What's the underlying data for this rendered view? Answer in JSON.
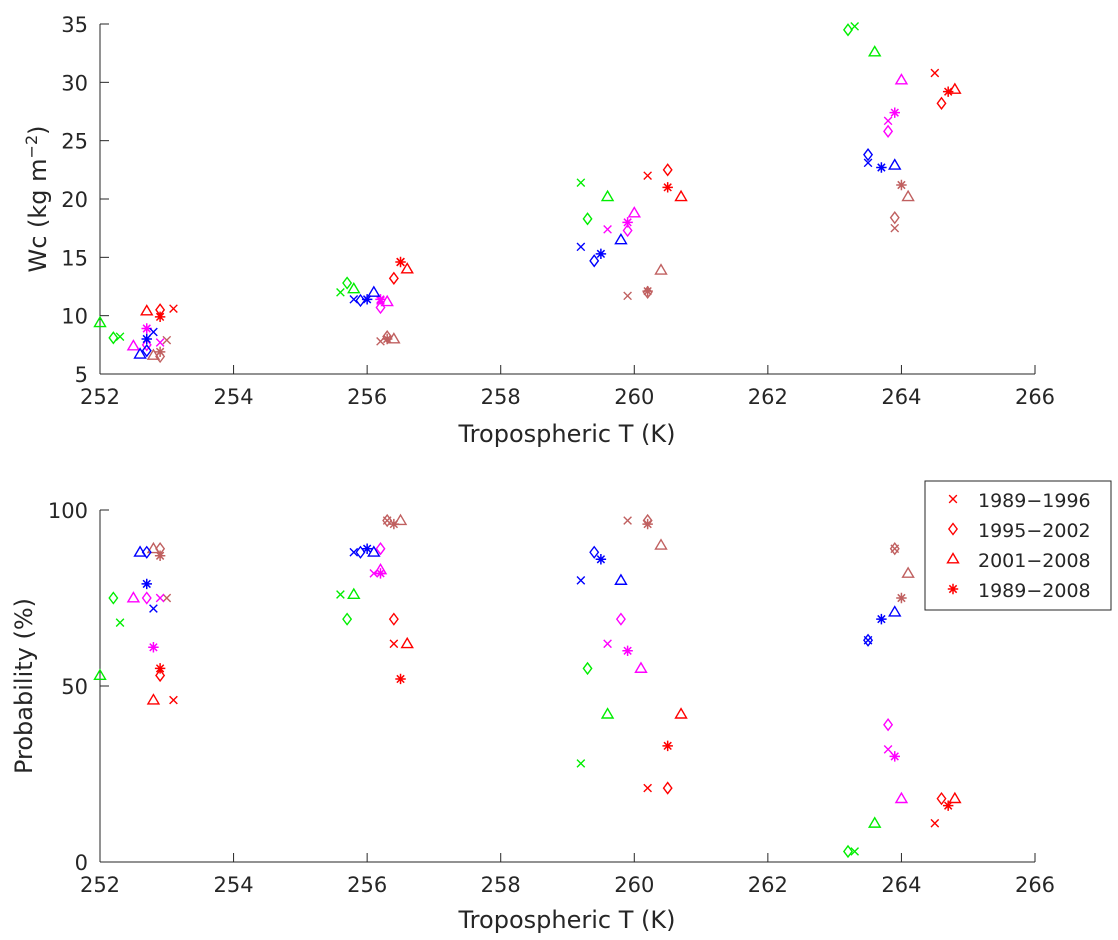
{
  "chart_data": [
    {
      "type": "scatter",
      "xlabel": "Tropospheric T (K)",
      "ylabel_main": "Wc (kg m",
      "ylabel_sup": "−2",
      "ylabel_close": ")",
      "xlim": [
        252,
        266
      ],
      "ylim": [
        5,
        35
      ],
      "xticks": [
        "252",
        "254",
        "256",
        "258",
        "260",
        "262",
        "264",
        "266"
      ],
      "yticks": [
        "5",
        "10",
        "15",
        "20",
        "25",
        "30",
        "35"
      ],
      "grid": false,
      "series": [
        {
          "region": "red",
          "color": "#ff0000",
          "marker": "x",
          "points": [
            [
              253.1,
              10.6
            ],
            [
              256.5,
              14.6
            ],
            [
              260.2,
              22.0
            ],
            [
              264.5,
              30.8
            ]
          ]
        },
        {
          "region": "red",
          "color": "#ff0000",
          "marker": "diamond",
          "points": [
            [
              252.9,
              10.5
            ],
            [
              256.4,
              13.2
            ],
            [
              260.5,
              22.5
            ],
            [
              264.6,
              28.2
            ]
          ]
        },
        {
          "region": "red",
          "color": "#ff0000",
          "marker": "triangle",
          "points": [
            [
              252.7,
              10.4
            ],
            [
              256.6,
              14.0
            ],
            [
              260.7,
              20.2
            ],
            [
              264.8,
              29.4
            ]
          ]
        },
        {
          "region": "red",
          "color": "#ff0000",
          "marker": "asterisk",
          "points": [
            [
              252.9,
              9.9
            ],
            [
              256.5,
              14.6
            ],
            [
              260.5,
              21.0
            ],
            [
              264.7,
              29.2
            ]
          ]
        },
        {
          "region": "brown",
          "color": "#c06060",
          "marker": "x",
          "points": [
            [
              253.0,
              7.9
            ],
            [
              256.2,
              7.8
            ],
            [
              259.9,
              11.7
            ],
            [
              263.9,
              17.5
            ]
          ]
        },
        {
          "region": "brown",
          "color": "#c06060",
          "marker": "diamond",
          "points": [
            [
              252.9,
              6.5
            ],
            [
              256.3,
              8.2
            ],
            [
              260.2,
              12.0
            ],
            [
              263.9,
              18.4
            ]
          ]
        },
        {
          "region": "brown",
          "color": "#c06060",
          "marker": "triangle",
          "points": [
            [
              252.8,
              6.6
            ],
            [
              256.4,
              8.0
            ],
            [
              260.4,
              13.9
            ],
            [
              264.1,
              20.2
            ]
          ]
        },
        {
          "region": "brown",
          "color": "#c06060",
          "marker": "asterisk",
          "points": [
            [
              252.9,
              6.9
            ],
            [
              256.3,
              8.0
            ],
            [
              260.2,
              12.1
            ],
            [
              264.0,
              21.2
            ]
          ]
        },
        {
          "region": "magenta",
          "color": "#ff00ff",
          "marker": "x",
          "points": [
            [
              252.9,
              7.7
            ],
            [
              256.2,
              11.3
            ],
            [
              259.6,
              17.4
            ],
            [
              263.8,
              26.7
            ]
          ]
        },
        {
          "region": "magenta",
          "color": "#ff00ff",
          "marker": "diamond",
          "points": [
            [
              252.7,
              7.5
            ],
            [
              256.2,
              10.7
            ],
            [
              259.9,
              17.3
            ],
            [
              263.8,
              25.8
            ]
          ]
        },
        {
          "region": "magenta",
          "color": "#ff00ff",
          "marker": "triangle",
          "points": [
            [
              252.5,
              7.4
            ],
            [
              256.3,
              11.2
            ],
            [
              260.0,
              18.8
            ],
            [
              264.0,
              30.2
            ]
          ]
        },
        {
          "region": "magenta",
          "color": "#ff00ff",
          "marker": "asterisk",
          "points": [
            [
              252.7,
              8.9
            ],
            [
              256.2,
              11.4
            ],
            [
              259.9,
              18.0
            ],
            [
              263.9,
              27.4
            ]
          ]
        },
        {
          "region": "blue",
          "color": "#0000ff",
          "marker": "x",
          "points": [
            [
              252.8,
              8.6
            ],
            [
              255.8,
              11.4
            ],
            [
              259.2,
              15.9
            ],
            [
              263.5,
              23.1
            ]
          ]
        },
        {
          "region": "blue",
          "color": "#0000ff",
          "marker": "diamond",
          "points": [
            [
              252.7,
              7.0
            ],
            [
              255.9,
              11.3
            ],
            [
              259.4,
              14.7
            ],
            [
              263.5,
              23.8
            ]
          ]
        },
        {
          "region": "blue",
          "color": "#0000ff",
          "marker": "triangle",
          "points": [
            [
              252.6,
              6.7
            ],
            [
              256.1,
              12.0
            ],
            [
              259.8,
              16.5
            ],
            [
              263.9,
              22.9
            ]
          ]
        },
        {
          "region": "blue",
          "color": "#0000ff",
          "marker": "asterisk",
          "points": [
            [
              252.7,
              8.0
            ],
            [
              256.0,
              11.4
            ],
            [
              259.5,
              15.3
            ],
            [
              263.7,
              22.7
            ]
          ]
        },
        {
          "region": "green",
          "color": "#00ee00",
          "marker": "x",
          "points": [
            [
              252.3,
              8.2
            ],
            [
              255.6,
              12.0
            ],
            [
              259.2,
              21.4
            ],
            [
              263.3,
              34.8
            ]
          ]
        },
        {
          "region": "green",
          "color": "#00ee00",
          "marker": "diamond",
          "points": [
            [
              252.2,
              8.1
            ],
            [
              255.7,
              12.8
            ],
            [
              259.3,
              18.3
            ],
            [
              263.2,
              34.5
            ]
          ]
        },
        {
          "region": "green",
          "color": "#00ee00",
          "marker": "triangle",
          "points": [
            [
              252.0,
              9.4
            ],
            [
              255.8,
              12.3
            ],
            [
              259.6,
              20.2
            ],
            [
              263.6,
              32.6
            ]
          ]
        }
      ]
    },
    {
      "type": "scatter",
      "xlabel": "Tropospheric T (K)",
      "ylabel": "Probability (%)",
      "xlim": [
        252,
        266
      ],
      "ylim": [
        0,
        100
      ],
      "xticks": [
        "252",
        "254",
        "256",
        "258",
        "260",
        "262",
        "264",
        "266"
      ],
      "yticks": [
        "0",
        "50",
        "100"
      ],
      "grid": false,
      "legend": {
        "placement": "top-right",
        "entries": [
          {
            "label": "1989−1996",
            "marker": "x"
          },
          {
            "label": "1995−2002",
            "marker": "diamond"
          },
          {
            "label": "2001−2008",
            "marker": "triangle"
          },
          {
            "label": "1989−2008",
            "marker": "asterisk"
          }
        ],
        "color": "#ff0000"
      },
      "series": [
        {
          "region": "red",
          "color": "#ff0000",
          "marker": "x",
          "points": [
            [
              253.1,
              46
            ],
            [
              256.4,
              62
            ],
            [
              260.2,
              21
            ],
            [
              264.5,
              11
            ]
          ]
        },
        {
          "region": "red",
          "color": "#ff0000",
          "marker": "diamond",
          "points": [
            [
              252.9,
              53
            ],
            [
              256.4,
              69
            ],
            [
              260.5,
              21
            ],
            [
              264.6,
              18
            ]
          ]
        },
        {
          "region": "red",
          "color": "#ff0000",
          "marker": "triangle",
          "points": [
            [
              252.8,
              46
            ],
            [
              256.6,
              62
            ],
            [
              260.7,
              42
            ],
            [
              264.8,
              18
            ]
          ]
        },
        {
          "region": "red",
          "color": "#ff0000",
          "marker": "asterisk",
          "points": [
            [
              252.9,
              55
            ],
            [
              256.5,
              52
            ],
            [
              260.5,
              33
            ],
            [
              264.7,
              16
            ]
          ]
        },
        {
          "region": "brown",
          "color": "#c06060",
          "marker": "x",
          "points": [
            [
              253.0,
              75
            ],
            [
              256.3,
              97
            ],
            [
              259.9,
              97
            ],
            [
              263.9,
              89
            ]
          ]
        },
        {
          "region": "brown",
          "color": "#c06060",
          "marker": "diamond",
          "points": [
            [
              252.9,
              89
            ],
            [
              256.3,
              97
            ],
            [
              260.2,
              97
            ],
            [
              263.9,
              89
            ]
          ]
        },
        {
          "region": "brown",
          "color": "#c06060",
          "marker": "triangle",
          "points": [
            [
              252.8,
              89
            ],
            [
              256.5,
              97
            ],
            [
              260.4,
              90
            ],
            [
              264.1,
              82
            ]
          ]
        },
        {
          "region": "brown",
          "color": "#c06060",
          "marker": "asterisk",
          "points": [
            [
              252.9,
              87
            ],
            [
              256.4,
              96
            ],
            [
              260.2,
              96
            ],
            [
              264.0,
              75
            ]
          ]
        },
        {
          "region": "magenta",
          "color": "#ff00ff",
          "marker": "x",
          "points": [
            [
              252.9,
              75
            ],
            [
              256.1,
              82
            ],
            [
              259.6,
              62
            ],
            [
              263.8,
              32
            ]
          ]
        },
        {
          "region": "magenta",
          "color": "#ff00ff",
          "marker": "diamond",
          "points": [
            [
              252.7,
              75
            ],
            [
              256.2,
              89
            ],
            [
              259.8,
              69
            ],
            [
              263.8,
              39
            ]
          ]
        },
        {
          "region": "magenta",
          "color": "#ff00ff",
          "marker": "triangle",
          "points": [
            [
              252.5,
              75
            ],
            [
              256.2,
              83
            ],
            [
              260.1,
              55
            ],
            [
              264.0,
              18
            ]
          ]
        },
        {
          "region": "magenta",
          "color": "#ff00ff",
          "marker": "asterisk",
          "points": [
            [
              252.8,
              61
            ],
            [
              256.2,
              82
            ],
            [
              259.9,
              60
            ],
            [
              263.9,
              30
            ]
          ]
        },
        {
          "region": "blue",
          "color": "#0000ff",
          "marker": "x",
          "points": [
            [
              252.8,
              72
            ],
            [
              255.8,
              88
            ],
            [
              259.2,
              80
            ],
            [
              263.5,
              63
            ]
          ]
        },
        {
          "region": "blue",
          "color": "#0000ff",
          "marker": "diamond",
          "points": [
            [
              252.7,
              88
            ],
            [
              255.9,
              88
            ],
            [
              259.4,
              88
            ],
            [
              263.5,
              63
            ]
          ]
        },
        {
          "region": "blue",
          "color": "#0000ff",
          "marker": "triangle",
          "points": [
            [
              252.6,
              88
            ],
            [
              256.1,
              88
            ],
            [
              259.8,
              80
            ],
            [
              263.9,
              71
            ]
          ]
        },
        {
          "region": "blue",
          "color": "#0000ff",
          "marker": "asterisk",
          "points": [
            [
              252.7,
              79
            ],
            [
              256.0,
              89
            ],
            [
              259.5,
              86
            ],
            [
              263.7,
              69
            ]
          ]
        },
        {
          "region": "green",
          "color": "#00ee00",
          "marker": "x",
          "points": [
            [
              252.3,
              68
            ],
            [
              255.6,
              76
            ],
            [
              259.2,
              28
            ],
            [
              263.3,
              3
            ]
          ]
        },
        {
          "region": "green",
          "color": "#00ee00",
          "marker": "diamond",
          "points": [
            [
              252.2,
              75
            ],
            [
              255.7,
              69
            ],
            [
              259.3,
              55
            ],
            [
              263.2,
              3
            ]
          ]
        },
        {
          "region": "green",
          "color": "#00ee00",
          "marker": "triangle",
          "points": [
            [
              252.0,
              53
            ],
            [
              255.8,
              76
            ],
            [
              259.6,
              42
            ],
            [
              263.6,
              11
            ]
          ]
        }
      ]
    }
  ]
}
